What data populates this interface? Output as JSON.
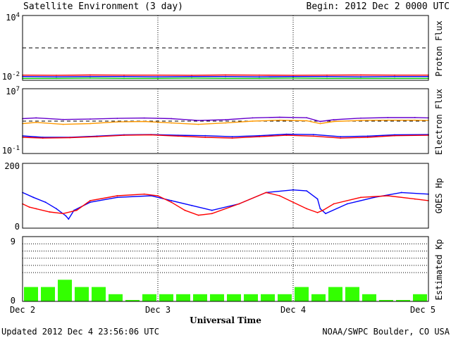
{
  "header": {
    "title": "Satellite Environment (3 day)",
    "begin": "Begin:  2012 Dec 2 0000 UTC"
  },
  "footer": {
    "updated": "Updated 2012 Dec  4 23:56:06 UTC",
    "credit": "NOAA/SWPC Boulder, CO USA",
    "xlabel": "Universal Time"
  },
  "x_ticks": [
    "Dec 2",
    "Dec 3",
    "Dec 4",
    "Dec 5"
  ],
  "chart_data": [
    {
      "type": "line",
      "ylabel": "Proton Flux",
      "yscale": "log",
      "ylim": [
        "1e-2",
        "1e4"
      ],
      "ytick_labels": [
        {
          "base": "10",
          "exp": "4"
        },
        {
          "base": "10",
          "exp": "-2"
        }
      ],
      "threshold": 10,
      "xlim_days": [
        0,
        3
      ],
      "series": [
        {
          "color": "#ff0000",
          "x": [
            0,
            0.25,
            0.5,
            0.75,
            1,
            1.25,
            1.5,
            1.75,
            2,
            2.25,
            2.5,
            2.75,
            3
          ],
          "values": [
            0.03,
            0.029,
            0.031,
            0.03,
            0.03,
            0.029,
            0.031,
            0.03,
            0.029,
            0.03,
            0.031,
            0.03,
            0.03
          ]
        },
        {
          "color": "#0000ff",
          "x": [
            0,
            0.25,
            0.5,
            0.75,
            1,
            1.25,
            1.5,
            1.75,
            2,
            2.25,
            2.5,
            2.75,
            3
          ],
          "values": [
            0.022,
            0.021,
            0.022,
            0.022,
            0.021,
            0.022,
            0.022,
            0.021,
            0.022,
            0.022,
            0.021,
            0.022,
            0.022
          ]
        },
        {
          "color": "#00cc00",
          "x": [
            0,
            0.25,
            0.5,
            0.75,
            1,
            1.25,
            1.5,
            1.75,
            2,
            2.25,
            2.5,
            2.75,
            3
          ],
          "values": [
            0.015,
            0.015,
            0.016,
            0.015,
            0.015,
            0.016,
            0.015,
            0.015,
            0.016,
            0.015,
            0.015,
            0.015,
            0.015
          ]
        }
      ]
    },
    {
      "type": "line",
      "ylabel": "Electron Flux",
      "yscale": "log",
      "ylim": [
        "1e-1",
        "1e7"
      ],
      "ytick_labels": [
        {
          "base": "10",
          "exp": "7"
        },
        {
          "base": "10",
          "exp": "-1"
        }
      ],
      "threshold": 1000,
      "xlim_days": [
        0,
        3
      ],
      "series": [
        {
          "color": "#6600cc",
          "x": [
            0,
            0.1,
            0.3,
            0.5,
            0.7,
            0.9,
            1.1,
            1.3,
            1.5,
            1.7,
            1.9,
            2.1,
            2.2,
            2.3,
            2.5,
            2.7,
            2.9,
            3
          ],
          "values": [
            2000,
            2500,
            1600,
            1800,
            2200,
            2400,
            2000,
            1200,
            1500,
            2500,
            3000,
            2600,
            900,
            1500,
            2300,
            2700,
            2800,
            2500
          ]
        },
        {
          "color": "#ff9900",
          "x": [
            0,
            0.1,
            0.3,
            0.5,
            0.7,
            0.9,
            1.1,
            1.3,
            1.5,
            1.7,
            1.9,
            2.1,
            2.2,
            2.3,
            2.5,
            2.7,
            2.9,
            3
          ],
          "values": [
            500,
            700,
            400,
            500,
            800,
            900,
            600,
            400,
            600,
            1000,
            1300,
            1100,
            500,
            900,
            1200,
            1300,
            1300,
            1200
          ]
        },
        {
          "color": "#0000ff",
          "x": [
            0,
            0.15,
            0.35,
            0.55,
            0.75,
            0.95,
            1.15,
            1.35,
            1.55,
            1.75,
            1.95,
            2.15,
            2.35,
            2.55,
            2.75,
            3
          ],
          "values": [
            15,
            10,
            10,
            14,
            20,
            22,
            18,
            16,
            12,
            16,
            24,
            22,
            12,
            14,
            20,
            22
          ]
        },
        {
          "color": "#ff0000",
          "x": [
            0,
            0.15,
            0.35,
            0.55,
            0.75,
            0.95,
            1.15,
            1.35,
            1.55,
            1.75,
            1.95,
            2.15,
            2.35,
            2.55,
            2.75,
            3
          ],
          "values": [
            10,
            8,
            9,
            12,
            18,
            20,
            14,
            10,
            8,
            12,
            18,
            14,
            8,
            10,
            16,
            18
          ]
        }
      ]
    },
    {
      "type": "line",
      "ylabel": "GOES Hp",
      "ylim": [
        0,
        200
      ],
      "ytick_labels": [
        "200",
        "0"
      ],
      "xlim_days": [
        0,
        3
      ],
      "series": [
        {
          "color": "#0000ff",
          "x": [
            0,
            0.08,
            0.17,
            0.25,
            0.32,
            0.34,
            0.38,
            0.5,
            0.7,
            0.95,
            1.1,
            1.25,
            1.4,
            1.6,
            1.8,
            2.0,
            2.1,
            2.18,
            2.2,
            2.24,
            2.4,
            2.6,
            2.8,
            3.0
          ],
          "values": [
            110,
            95,
            80,
            60,
            38,
            28,
            55,
            80,
            95,
            100,
            85,
            70,
            55,
            75,
            110,
            118,
            115,
            90,
            60,
            45,
            75,
            95,
            110,
            105
          ]
        },
        {
          "color": "#ff0000",
          "x": [
            0,
            0.05,
            0.1,
            0.2,
            0.3,
            0.4,
            0.5,
            0.7,
            0.9,
            1.0,
            1.1,
            1.2,
            1.3,
            1.4,
            1.6,
            1.8,
            1.9,
            2.0,
            2.1,
            2.18,
            2.22,
            2.3,
            2.5,
            2.7,
            2.9,
            3.0
          ],
          "values": [
            75,
            65,
            60,
            50,
            45,
            55,
            85,
            100,
            105,
            100,
            80,
            55,
            40,
            45,
            75,
            110,
            100,
            80,
            60,
            48,
            55,
            75,
            95,
            100,
            90,
            85
          ]
        }
      ]
    },
    {
      "type": "bar",
      "ylabel": "Estimated Kp",
      "ylim": [
        0,
        9
      ],
      "ytick_labels": [
        "9",
        "0"
      ],
      "gridlines_at": [
        4,
        5,
        6,
        7,
        8,
        9
      ],
      "bar_color": "#33ff00",
      "x_start_days": [
        0,
        0.125,
        0.25,
        0.375,
        0.5,
        0.625,
        0.75,
        0.875,
        1,
        1.125,
        1.25,
        1.375,
        1.5,
        1.625,
        1.75,
        1.875,
        2,
        2.125,
        2.25,
        2.375,
        2.5,
        2.625,
        2.75,
        2.875
      ],
      "values": [
        2,
        2,
        3,
        2,
        2,
        1,
        0.2,
        1,
        1,
        1,
        1,
        1,
        1,
        1,
        1,
        1,
        2,
        1,
        2,
        2,
        1,
        0.2,
        0.2,
        1
      ]
    }
  ]
}
